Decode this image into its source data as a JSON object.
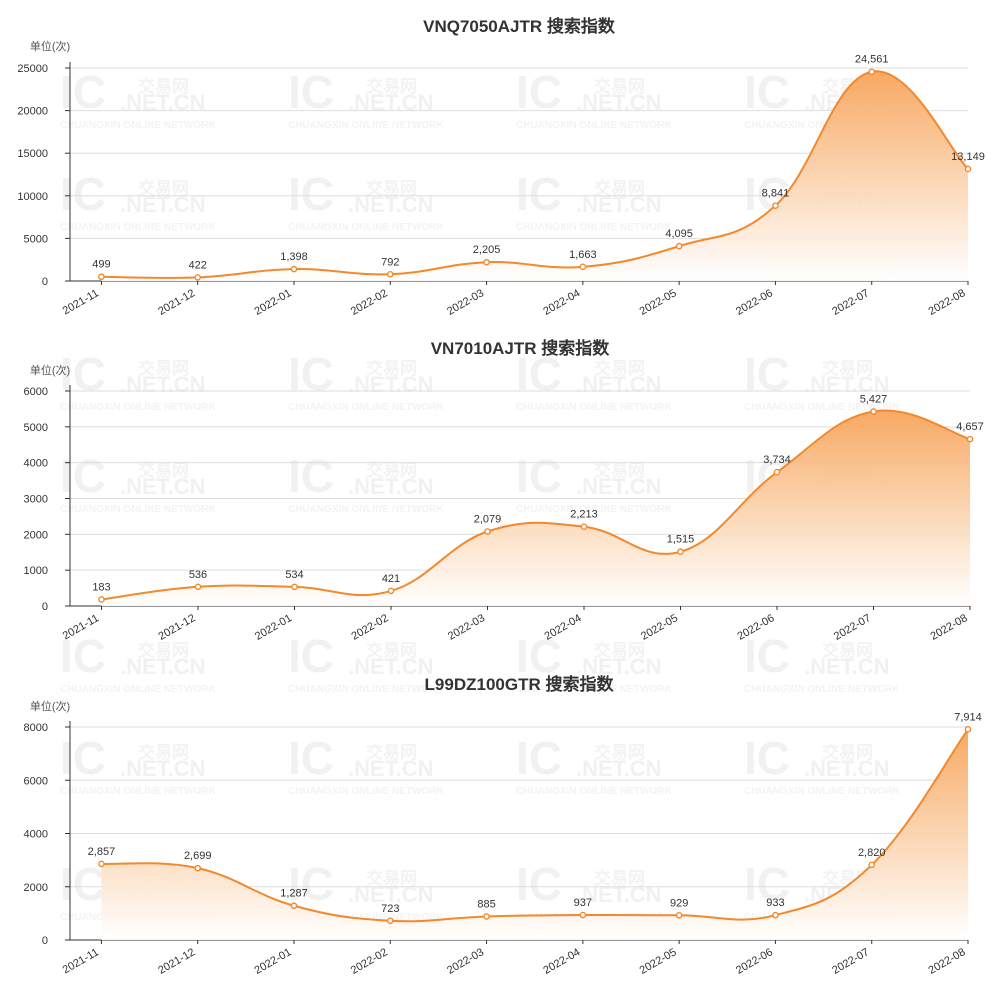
{
  "watermark": {
    "main": "IC",
    "domain": ".NET.CN",
    "chinese": "交易网",
    "sub": "CHUANGXIN ONLINE NETWORK"
  },
  "colors": {
    "line": "#f2892c",
    "fill_top": "#f7a45a",
    "fill_bottom": "#ffffff",
    "grid": "#dddddd",
    "axis": "#333333"
  },
  "chart_data": [
    {
      "type": "area",
      "title": "VNQ7050AJTR 搜索指数",
      "unit_label": "单位(次)",
      "x": [
        "2021-11",
        "2021-12",
        "2022-01",
        "2022-02",
        "2022-03",
        "2022-04",
        "2022-05",
        "2022-06",
        "2022-07",
        "2022-08"
      ],
      "values": [
        499,
        422,
        1398,
        792,
        2205,
        1663,
        4095,
        8841,
        24561,
        13149
      ],
      "value_labels": [
        "499",
        "422",
        "1,398",
        "792",
        "2,205",
        "1,663",
        "4,095",
        "8,841",
        "24,561",
        "13,149"
      ],
      "yticks": [
        "0",
        "5000",
        "10000",
        "15000",
        "20000",
        "25000"
      ],
      "ylim": [
        0,
        25000
      ],
      "grid": true,
      "smooth": true
    },
    {
      "type": "area",
      "title": "VN7010AJTR 搜索指数",
      "unit_label": "单位(次)",
      "x": [
        "2021-11",
        "2021-12",
        "2022-01",
        "2022-02",
        "2022-03",
        "2022-04",
        "2022-05",
        "2022-06",
        "2022-07",
        "2022-08"
      ],
      "values": [
        183,
        536,
        534,
        421,
        2079,
        2213,
        1515,
        3734,
        5427,
        4657
      ],
      "value_labels": [
        "183",
        "536",
        "534",
        "421",
        "2,079",
        "2,213",
        "1,515",
        "3,734",
        "5,427",
        "4,657"
      ],
      "yticks": [
        "0",
        "1000",
        "2000",
        "3000",
        "4000",
        "5000",
        "6000"
      ],
      "ylim": [
        0,
        6000
      ],
      "grid": true,
      "smooth": true
    },
    {
      "type": "area",
      "title": "L99DZ100GTR 搜索指数",
      "unit_label": "单位(次)",
      "x": [
        "2021-11",
        "2021-12",
        "2022-01",
        "2022-02",
        "2022-03",
        "2022-04",
        "2022-05",
        "2022-06",
        "2022-07",
        "2022-08"
      ],
      "values": [
        2857,
        2699,
        1287,
        723,
        885,
        937,
        929,
        933,
        2820,
        7914
      ],
      "value_labels": [
        "2,857",
        "2,699",
        "1,287",
        "723",
        "885",
        "937",
        "929",
        "933",
        "2,820",
        "7,914"
      ],
      "yticks": [
        "0",
        "2000",
        "4000",
        "6000",
        "8000"
      ],
      "ylim": [
        0,
        8000
      ],
      "grid": true,
      "smooth": true
    }
  ]
}
